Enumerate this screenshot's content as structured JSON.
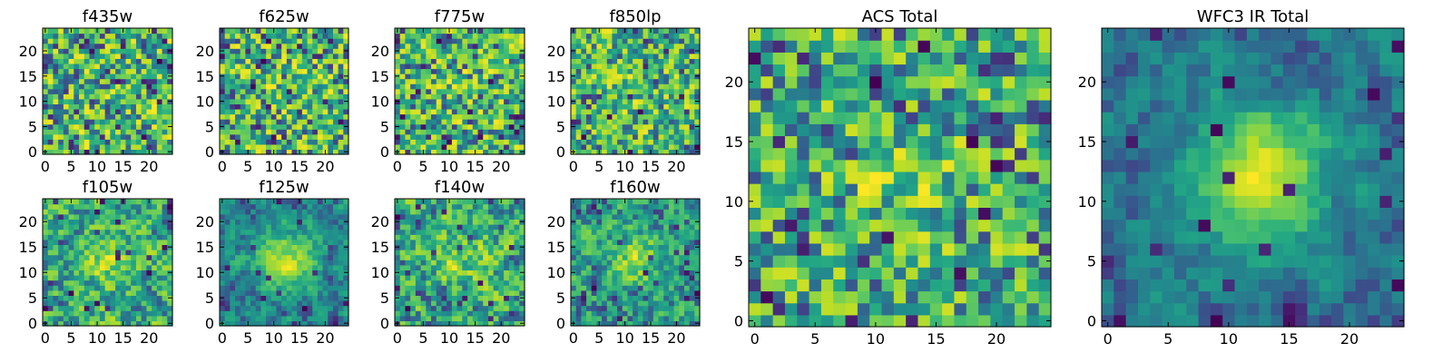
{
  "chart_data": [
    {
      "type": "heatmap",
      "title": "f435w",
      "xticks": [
        "0",
        "5",
        "10",
        "15",
        "20"
      ],
      "yticks": [
        "0",
        "5",
        "10",
        "15",
        "20"
      ],
      "grid_size": 25,
      "xlim": [
        0,
        24
      ],
      "ylim": [
        0,
        24
      ],
      "colormap": "viridis",
      "seed": 11,
      "smooth": 0.1,
      "blob": 0.0
    },
    {
      "type": "heatmap",
      "title": "f625w",
      "xticks": [
        "0",
        "5",
        "10",
        "15",
        "20"
      ],
      "yticks": [
        "0",
        "5",
        "10",
        "15",
        "20"
      ],
      "grid_size": 25,
      "xlim": [
        0,
        24
      ],
      "ylim": [
        0,
        24
      ],
      "colormap": "viridis",
      "seed": 23,
      "smooth": 0.1,
      "blob": 0.05
    },
    {
      "type": "heatmap",
      "title": "f775w",
      "xticks": [
        "0",
        "5",
        "10",
        "15",
        "20"
      ],
      "yticks": [
        "0",
        "5",
        "10",
        "15",
        "20"
      ],
      "grid_size": 25,
      "xlim": [
        0,
        24
      ],
      "ylim": [
        0,
        24
      ],
      "colormap": "viridis",
      "seed": 37,
      "smooth": 0.1,
      "blob": 0.05
    },
    {
      "type": "heatmap",
      "title": "f850lp",
      "xticks": [
        "0",
        "5",
        "10",
        "15",
        "20"
      ],
      "yticks": [
        "0",
        "5",
        "10",
        "15",
        "20"
      ],
      "grid_size": 25,
      "xlim": [
        0,
        24
      ],
      "ylim": [
        0,
        24
      ],
      "colormap": "viridis",
      "seed": 41,
      "smooth": 0.15,
      "blob": 0.1
    },
    {
      "type": "heatmap",
      "title": "f105w",
      "xticks": [
        "0",
        "5",
        "10",
        "15",
        "20"
      ],
      "yticks": [
        "0",
        "5",
        "10",
        "15",
        "20"
      ],
      "grid_size": 25,
      "xlim": [
        0,
        24
      ],
      "ylim": [
        0,
        24
      ],
      "colormap": "viridis",
      "seed": 53,
      "smooth": 0.45,
      "blob": 0.2
    },
    {
      "type": "heatmap",
      "title": "f125w",
      "xticks": [
        "0",
        "5",
        "10",
        "15",
        "20"
      ],
      "yticks": [
        "0",
        "5",
        "10",
        "15",
        "20"
      ],
      "grid_size": 25,
      "xlim": [
        0,
        24
      ],
      "ylim": [
        0,
        24
      ],
      "colormap": "viridis",
      "seed": 67,
      "smooth": 0.55,
      "blob": 0.45
    },
    {
      "type": "heatmap",
      "title": "f140w",
      "xticks": [
        "0",
        "5",
        "10",
        "15",
        "20"
      ],
      "yticks": [
        "0",
        "5",
        "10",
        "15",
        "20"
      ],
      "grid_size": 25,
      "xlim": [
        0,
        24
      ],
      "ylim": [
        0,
        24
      ],
      "colormap": "viridis",
      "seed": 79,
      "smooth": 0.45,
      "blob": 0.2
    },
    {
      "type": "heatmap",
      "title": "f160w",
      "xticks": [
        "0",
        "5",
        "10",
        "15",
        "20"
      ],
      "yticks": [
        "0",
        "5",
        "10",
        "15",
        "20"
      ],
      "grid_size": 25,
      "xlim": [
        0,
        24
      ],
      "ylim": [
        0,
        24
      ],
      "colormap": "viridis",
      "seed": 83,
      "smooth": 0.45,
      "blob": 0.3
    },
    {
      "type": "heatmap",
      "title": "ACS Total",
      "xticks": [
        "0",
        "5",
        "10",
        "15",
        "20"
      ],
      "yticks": [
        "0",
        "5",
        "10",
        "15",
        "20"
      ],
      "grid_size": 25,
      "xlim": [
        0,
        24
      ],
      "ylim": [
        0,
        24
      ],
      "colormap": "viridis",
      "seed": 97,
      "smooth": 0.2,
      "blob": 0.15
    },
    {
      "type": "heatmap",
      "title": "WFC3 IR Total",
      "xticks": [
        "0",
        "5",
        "10",
        "15",
        "20"
      ],
      "yticks": [
        "0",
        "5",
        "10",
        "15",
        "20"
      ],
      "grid_size": 25,
      "xlim": [
        0,
        24
      ],
      "ylim": [
        0,
        24
      ],
      "colormap": "viridis",
      "seed": 101,
      "smooth": 0.6,
      "blob": 0.55
    }
  ]
}
